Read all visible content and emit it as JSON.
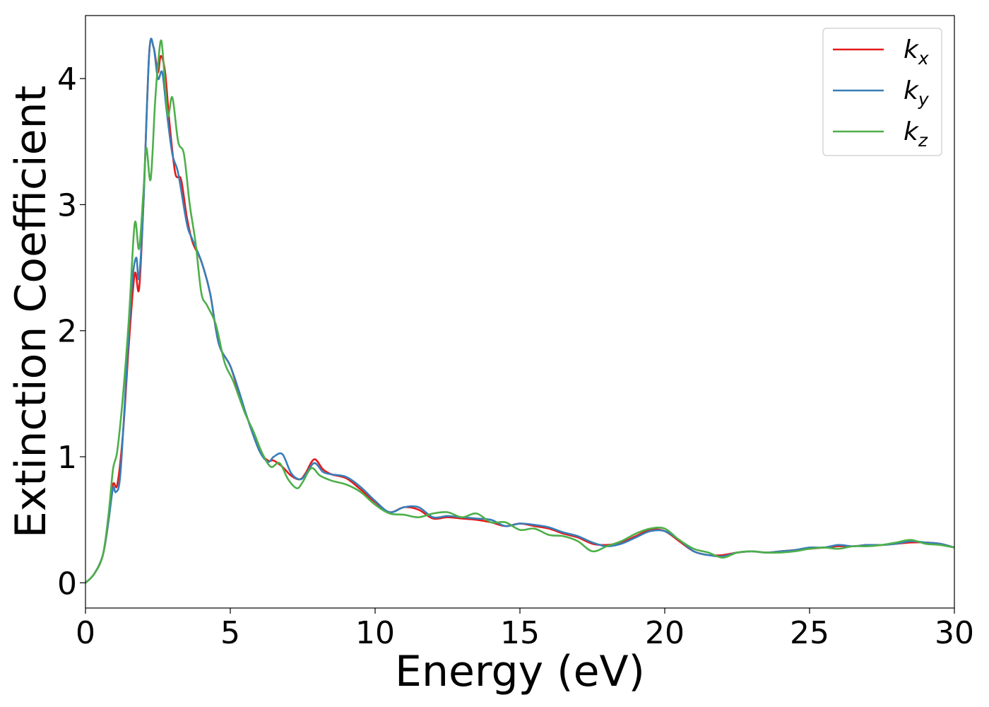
{
  "chart_data": {
    "type": "line",
    "xlabel": "Energy (eV)",
    "ylabel": "Extinction Coefficient",
    "xlim": [
      0,
      30
    ],
    "ylim": [
      -0.2,
      4.5
    ],
    "xticks": [
      0,
      5,
      10,
      15,
      20,
      25,
      30
    ],
    "xtick_labels": [
      "0",
      "5",
      "10",
      "15",
      "20",
      "25",
      "30"
    ],
    "yticks": [
      0,
      1,
      2,
      3,
      4
    ],
    "ytick_labels": [
      "0",
      "1",
      "2",
      "3",
      "4"
    ],
    "grid": false,
    "legend_position": "top-right",
    "series": [
      {
        "name": "k",
        "subscript": "x",
        "color": "#e41a1c",
        "x": [
          0,
          0.3,
          0.6,
          0.8,
          0.95,
          1.1,
          1.3,
          1.5,
          1.7,
          1.85,
          2.0,
          2.2,
          2.35,
          2.5,
          2.6,
          2.75,
          2.9,
          3.1,
          3.3,
          3.5,
          3.7,
          4.0,
          4.3,
          4.6,
          5.0,
          5.3,
          5.6,
          6.0,
          6.3,
          6.5,
          6.8,
          7.1,
          7.4,
          7.6,
          7.9,
          8.2,
          8.5,
          9.0,
          9.5,
          10.0,
          10.5,
          11.0,
          11.5,
          12.0,
          12.5,
          13.0,
          13.5,
          14.0,
          14.5,
          15.0,
          15.5,
          16.0,
          16.5,
          17.0,
          17.5,
          18.0,
          18.5,
          19.0,
          19.5,
          20.0,
          20.5,
          21.0,
          21.5,
          22.0,
          22.5,
          23.0,
          23.5,
          24.0,
          24.5,
          25.0,
          25.5,
          26.0,
          26.5,
          27.0,
          27.5,
          28.0,
          28.5,
          29.0,
          29.5,
          30.0
        ],
        "y": [
          0,
          0.07,
          0.22,
          0.5,
          0.78,
          0.78,
          1.2,
          1.9,
          2.45,
          2.33,
          3.0,
          4.2,
          4.25,
          4.05,
          4.18,
          4.05,
          3.65,
          3.25,
          3.2,
          2.9,
          2.7,
          2.55,
          2.3,
          1.9,
          1.72,
          1.5,
          1.3,
          1.05,
          0.97,
          0.97,
          0.92,
          0.85,
          0.82,
          0.87,
          0.98,
          0.9,
          0.86,
          0.83,
          0.74,
          0.64,
          0.56,
          0.6,
          0.58,
          0.51,
          0.52,
          0.51,
          0.5,
          0.48,
          0.45,
          0.47,
          0.45,
          0.43,
          0.39,
          0.36,
          0.31,
          0.3,
          0.32,
          0.37,
          0.42,
          0.41,
          0.33,
          0.25,
          0.22,
          0.22,
          0.24,
          0.25,
          0.24,
          0.25,
          0.26,
          0.27,
          0.28,
          0.29,
          0.29,
          0.3,
          0.3,
          0.31,
          0.32,
          0.32,
          0.31,
          0.28
        ]
      },
      {
        "name": "k",
        "subscript": "y",
        "color": "#377eb8",
        "x": [
          0,
          0.3,
          0.6,
          0.8,
          0.95,
          1.05,
          1.2,
          1.4,
          1.6,
          1.75,
          1.85,
          2.0,
          2.2,
          2.35,
          2.5,
          2.65,
          2.8,
          3.0,
          3.2,
          3.5,
          3.7,
          4.0,
          4.3,
          4.6,
          5.0,
          5.3,
          5.6,
          6.0,
          6.3,
          6.5,
          6.8,
          7.1,
          7.4,
          7.6,
          7.9,
          8.2,
          8.5,
          9.0,
          9.5,
          10.0,
          10.5,
          11.0,
          11.5,
          12.0,
          12.5,
          13.0,
          13.5,
          14.0,
          14.5,
          15.0,
          15.5,
          16.0,
          16.5,
          17.0,
          17.5,
          18.0,
          18.5,
          19.0,
          19.5,
          20.0,
          20.5,
          21.0,
          21.5,
          22.0,
          22.5,
          23.0,
          23.5,
          24.0,
          24.5,
          25.0,
          25.5,
          26.0,
          26.5,
          27.0,
          27.5,
          28.0,
          28.5,
          29.0,
          29.5,
          30.0
        ],
        "y": [
          0,
          0.07,
          0.22,
          0.5,
          0.75,
          0.72,
          0.85,
          1.6,
          2.35,
          2.58,
          2.42,
          3.0,
          4.2,
          4.25,
          4.0,
          4.05,
          3.75,
          3.4,
          3.25,
          2.85,
          2.72,
          2.55,
          2.3,
          1.9,
          1.72,
          1.52,
          1.3,
          1.05,
          0.96,
          1.0,
          1.02,
          0.87,
          0.82,
          0.86,
          0.95,
          0.88,
          0.86,
          0.84,
          0.76,
          0.65,
          0.56,
          0.6,
          0.6,
          0.52,
          0.53,
          0.52,
          0.51,
          0.5,
          0.45,
          0.47,
          0.46,
          0.44,
          0.4,
          0.37,
          0.32,
          0.29,
          0.31,
          0.36,
          0.41,
          0.41,
          0.34,
          0.25,
          0.22,
          0.21,
          0.24,
          0.25,
          0.24,
          0.25,
          0.26,
          0.28,
          0.28,
          0.3,
          0.29,
          0.3,
          0.3,
          0.31,
          0.33,
          0.32,
          0.31,
          0.28
        ]
      },
      {
        "name": "k",
        "subscript": "z",
        "color": "#4daf4a",
        "x": [
          0,
          0.3,
          0.6,
          0.8,
          0.95,
          1.1,
          1.3,
          1.5,
          1.7,
          1.85,
          2.0,
          2.1,
          2.25,
          2.4,
          2.5,
          2.62,
          2.75,
          2.85,
          3.0,
          3.2,
          3.4,
          3.6,
          3.8,
          4.0,
          4.2,
          4.5,
          4.8,
          5.1,
          5.5,
          5.8,
          6.1,
          6.4,
          6.7,
          7.0,
          7.3,
          7.5,
          7.8,
          8.1,
          8.5,
          9.0,
          9.5,
          10.0,
          10.5,
          11.0,
          11.5,
          12.0,
          12.5,
          13.0,
          13.5,
          14.0,
          14.5,
          15.0,
          15.5,
          16.0,
          16.5,
          17.0,
          17.5,
          18.0,
          18.5,
          19.0,
          19.5,
          20.0,
          20.5,
          21.0,
          21.5,
          22.0,
          22.5,
          23.0,
          23.5,
          24.0,
          24.5,
          25.0,
          25.5,
          26.0,
          26.5,
          27.0,
          27.5,
          28.0,
          28.5,
          29.0,
          29.5,
          30.0
        ],
        "y": [
          0,
          0.07,
          0.22,
          0.55,
          0.9,
          1.05,
          1.5,
          2.1,
          2.85,
          2.65,
          3.1,
          3.45,
          3.2,
          3.8,
          4.1,
          4.3,
          3.95,
          3.7,
          3.85,
          3.5,
          3.4,
          3.0,
          2.7,
          2.3,
          2.2,
          2.05,
          1.75,
          1.6,
          1.35,
          1.2,
          1.03,
          0.92,
          0.95,
          0.82,
          0.75,
          0.8,
          0.91,
          0.85,
          0.81,
          0.78,
          0.72,
          0.62,
          0.55,
          0.54,
          0.52,
          0.55,
          0.56,
          0.52,
          0.55,
          0.48,
          0.48,
          0.42,
          0.43,
          0.38,
          0.37,
          0.33,
          0.25,
          0.29,
          0.33,
          0.39,
          0.43,
          0.43,
          0.34,
          0.27,
          0.24,
          0.2,
          0.24,
          0.25,
          0.24,
          0.24,
          0.25,
          0.27,
          0.28,
          0.27,
          0.29,
          0.29,
          0.3,
          0.32,
          0.34,
          0.31,
          0.3,
          0.28
        ]
      }
    ]
  }
}
